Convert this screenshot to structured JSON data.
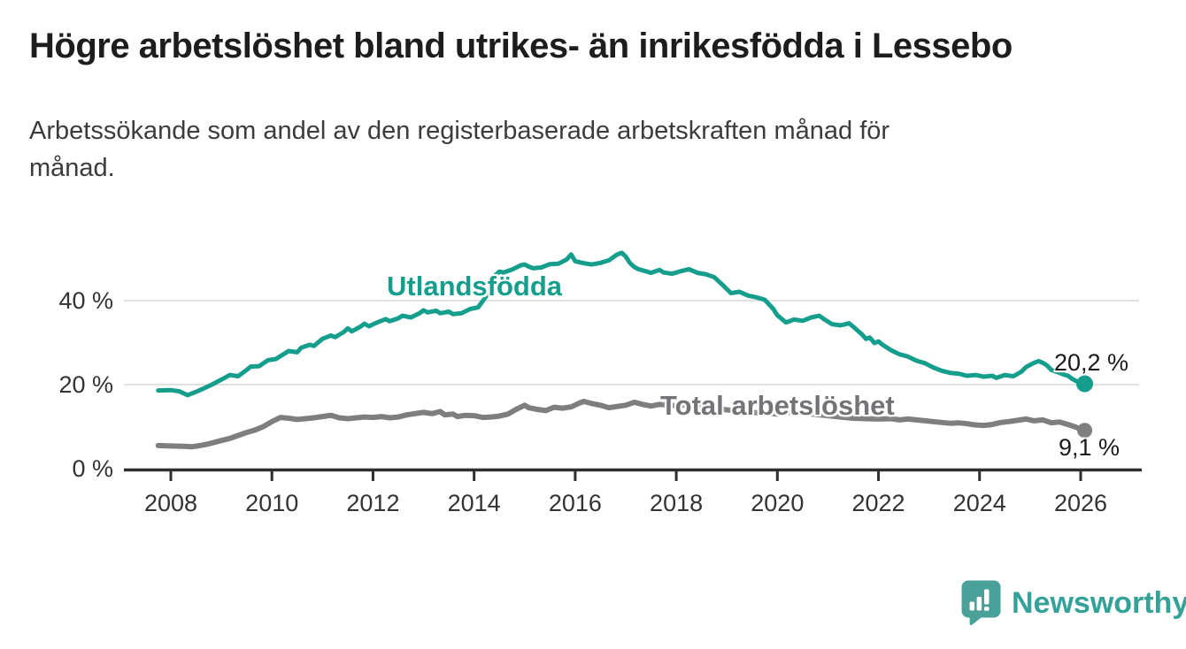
{
  "header": {
    "title": "Högre arbetslöshet bland utrikes- än inrikesfödda i Lessebo",
    "subtitle": "Arbetssökande som andel av den registerbaserade arbetskraften månad för\nmånad."
  },
  "branding": {
    "logo_text": "Newsworthy",
    "logo_text_color": "#35a29a",
    "logo_icon_color": "#4aa19a"
  },
  "chart_data": {
    "type": "line",
    "title": "Högre arbetslöshet bland utrikes- än inrikesfödda i Lessebo",
    "subtitle": "Arbetssökande som andel av den registerbaserade arbetskraften månad för månad.",
    "unit": "%",
    "grid": "horizontal",
    "colors": {
      "grid": "#d9d9d9",
      "axis": "#2f2f2f",
      "tick_text": "#333333"
    },
    "x_axis": {
      "min": 2007.75,
      "max": 2026.6,
      "ticks": [
        2008,
        2010,
        2012,
        2014,
        2016,
        2018,
        2020,
        2022,
        2024,
        2026
      ]
    },
    "y_axis": {
      "min": 0,
      "max": 54,
      "ticks": [
        {
          "value": 0,
          "label": "0 %"
        },
        {
          "value": 20,
          "label": "20 %"
        },
        {
          "value": 40,
          "label": "40 %"
        }
      ]
    },
    "series": [
      {
        "id": "utlandsfodda",
        "name": "Utlandsfödda",
        "color": "#169e8d",
        "stroke_width": 5,
        "end_label": "20,2 %",
        "end_value": 20.2,
        "points": [
          [
            2007.75,
            18.6
          ],
          [
            2008,
            18.7
          ],
          [
            2008.17,
            18.4
          ],
          [
            2008.33,
            17.5
          ],
          [
            2008.5,
            18.3
          ],
          [
            2008.67,
            19.2
          ],
          [
            2008.83,
            20.1
          ],
          [
            2009,
            21.2
          ],
          [
            2009.17,
            22.3
          ],
          [
            2009.33,
            22.0
          ],
          [
            2009.5,
            23.5
          ],
          [
            2009.58,
            24.3
          ],
          [
            2009.75,
            24.4
          ],
          [
            2009.92,
            25.8
          ],
          [
            2010.08,
            26.1
          ],
          [
            2010.25,
            27.4
          ],
          [
            2010.33,
            28.0
          ],
          [
            2010.5,
            27.7
          ],
          [
            2010.58,
            28.8
          ],
          [
            2010.75,
            29.5
          ],
          [
            2010.83,
            29.2
          ],
          [
            2011,
            30.9
          ],
          [
            2011.17,
            31.7
          ],
          [
            2011.25,
            31.3
          ],
          [
            2011.42,
            32.5
          ],
          [
            2011.5,
            33.4
          ],
          [
            2011.58,
            32.7
          ],
          [
            2011.75,
            33.8
          ],
          [
            2011.83,
            34.5
          ],
          [
            2011.92,
            33.9
          ],
          [
            2012.08,
            34.8
          ],
          [
            2012.25,
            35.6
          ],
          [
            2012.33,
            35.1
          ],
          [
            2012.5,
            35.8
          ],
          [
            2012.58,
            36.4
          ],
          [
            2012.75,
            36.0
          ],
          [
            2012.92,
            37.0
          ],
          [
            2013,
            37.7
          ],
          [
            2013.08,
            37.2
          ],
          [
            2013.25,
            37.6
          ],
          [
            2013.33,
            37.0
          ],
          [
            2013.5,
            37.4
          ],
          [
            2013.58,
            36.8
          ],
          [
            2013.75,
            37.0
          ],
          [
            2013.92,
            38.0
          ],
          [
            2014.08,
            38.4
          ],
          [
            2014.25,
            41.2
          ],
          [
            2014.42,
            46.0
          ],
          [
            2014.5,
            46.9
          ],
          [
            2014.58,
            46.7
          ],
          [
            2014.75,
            47.4
          ],
          [
            2014.92,
            48.4
          ],
          [
            2015,
            48.6
          ],
          [
            2015.08,
            48.1
          ],
          [
            2015.17,
            47.7
          ],
          [
            2015.33,
            47.9
          ],
          [
            2015.5,
            48.7
          ],
          [
            2015.67,
            48.8
          ],
          [
            2015.83,
            49.8
          ],
          [
            2015.92,
            51.0
          ],
          [
            2016,
            49.4
          ],
          [
            2016.17,
            48.9
          ],
          [
            2016.33,
            48.6
          ],
          [
            2016.5,
            49.0
          ],
          [
            2016.67,
            49.6
          ],
          [
            2016.83,
            51.0
          ],
          [
            2016.92,
            51.4
          ],
          [
            2017,
            50.5
          ],
          [
            2017.08,
            49.0
          ],
          [
            2017.17,
            48.0
          ],
          [
            2017.25,
            47.5
          ],
          [
            2017.42,
            46.9
          ],
          [
            2017.5,
            46.6
          ],
          [
            2017.67,
            47.3
          ],
          [
            2017.75,
            46.7
          ],
          [
            2017.92,
            46.4
          ],
          [
            2018.08,
            47.0
          ],
          [
            2018.25,
            47.5
          ],
          [
            2018.42,
            46.6
          ],
          [
            2018.58,
            46.3
          ],
          [
            2018.75,
            45.6
          ],
          [
            2018.92,
            43.7
          ],
          [
            2019.08,
            41.8
          ],
          [
            2019.25,
            42.1
          ],
          [
            2019.42,
            41.2
          ],
          [
            2019.58,
            40.8
          ],
          [
            2019.75,
            40.2
          ],
          [
            2019.92,
            38.0
          ],
          [
            2020,
            36.5
          ],
          [
            2020.17,
            34.8
          ],
          [
            2020.33,
            35.5
          ],
          [
            2020.5,
            35.2
          ],
          [
            2020.67,
            36.0
          ],
          [
            2020.83,
            36.4
          ],
          [
            2020.92,
            35.6
          ],
          [
            2021.08,
            34.4
          ],
          [
            2021.25,
            34.1
          ],
          [
            2021.42,
            34.6
          ],
          [
            2021.5,
            33.8
          ],
          [
            2021.67,
            32.0
          ],
          [
            2021.75,
            30.9
          ],
          [
            2021.83,
            31.2
          ],
          [
            2021.92,
            29.9
          ],
          [
            2022,
            30.3
          ],
          [
            2022.08,
            29.5
          ],
          [
            2022.25,
            28.2
          ],
          [
            2022.42,
            27.2
          ],
          [
            2022.58,
            26.7
          ],
          [
            2022.75,
            25.7
          ],
          [
            2022.92,
            25.1
          ],
          [
            2023.08,
            24.1
          ],
          [
            2023.25,
            23.3
          ],
          [
            2023.42,
            22.8
          ],
          [
            2023.58,
            22.6
          ],
          [
            2023.75,
            22.1
          ],
          [
            2023.92,
            22.3
          ],
          [
            2024.08,
            21.9
          ],
          [
            2024.25,
            22.1
          ],
          [
            2024.33,
            21.6
          ],
          [
            2024.5,
            22.3
          ],
          [
            2024.67,
            22.0
          ],
          [
            2024.83,
            23.1
          ],
          [
            2024.92,
            24.2
          ],
          [
            2025.08,
            25.2
          ],
          [
            2025.17,
            25.6
          ],
          [
            2025.25,
            25.2
          ],
          [
            2025.33,
            24.6
          ],
          [
            2025.42,
            23.5
          ],
          [
            2025.58,
            22.8
          ],
          [
            2025.67,
            22.4
          ],
          [
            2025.75,
            22.1
          ],
          [
            2025.83,
            21.4
          ],
          [
            2025.92,
            20.8
          ],
          [
            2026,
            20.4
          ],
          [
            2026.08,
            20.2
          ]
        ]
      },
      {
        "id": "total-arbetsloshet",
        "name": "Total arbetslöshet",
        "color": "#7d7e80",
        "stroke_width": 6,
        "end_label": "9,1 %",
        "end_value": 9.1,
        "points": [
          [
            2007.75,
            5.5
          ],
          [
            2008,
            5.4
          ],
          [
            2008.25,
            5.3
          ],
          [
            2008.42,
            5.2
          ],
          [
            2008.58,
            5.5
          ],
          [
            2008.75,
            5.9
          ],
          [
            2009,
            6.7
          ],
          [
            2009.17,
            7.2
          ],
          [
            2009.33,
            7.9
          ],
          [
            2009.5,
            8.6
          ],
          [
            2009.67,
            9.2
          ],
          [
            2009.83,
            10.0
          ],
          [
            2010,
            11.2
          ],
          [
            2010.17,
            12.2
          ],
          [
            2010.33,
            12.0
          ],
          [
            2010.5,
            11.7
          ],
          [
            2010.67,
            11.9
          ],
          [
            2010.83,
            12.1
          ],
          [
            2011,
            12.4
          ],
          [
            2011.17,
            12.7
          ],
          [
            2011.33,
            12.1
          ],
          [
            2011.5,
            11.9
          ],
          [
            2011.67,
            12.1
          ],
          [
            2011.83,
            12.3
          ],
          [
            2012,
            12.2
          ],
          [
            2012.17,
            12.4
          ],
          [
            2012.33,
            12.1
          ],
          [
            2012.5,
            12.3
          ],
          [
            2012.67,
            12.8
          ],
          [
            2012.83,
            13.1
          ],
          [
            2013,
            13.4
          ],
          [
            2013.17,
            13.1
          ],
          [
            2013.33,
            13.6
          ],
          [
            2013.42,
            12.8
          ],
          [
            2013.58,
            13.0
          ],
          [
            2013.67,
            12.4
          ],
          [
            2013.83,
            12.7
          ],
          [
            2014,
            12.6
          ],
          [
            2014.17,
            12.2
          ],
          [
            2014.33,
            12.3
          ],
          [
            2014.5,
            12.5
          ],
          [
            2014.67,
            13.0
          ],
          [
            2014.83,
            14.1
          ],
          [
            2015,
            15.1
          ],
          [
            2015.08,
            14.5
          ],
          [
            2015.25,
            14.1
          ],
          [
            2015.42,
            13.8
          ],
          [
            2015.58,
            14.6
          ],
          [
            2015.75,
            14.4
          ],
          [
            2015.92,
            14.7
          ],
          [
            2016.08,
            15.6
          ],
          [
            2016.17,
            16.0
          ],
          [
            2016.33,
            15.5
          ],
          [
            2016.5,
            15.1
          ],
          [
            2016.67,
            14.5
          ],
          [
            2016.83,
            14.8
          ],
          [
            2017,
            15.1
          ],
          [
            2017.17,
            15.8
          ],
          [
            2017.33,
            15.3
          ],
          [
            2017.5,
            14.9
          ],
          [
            2017.67,
            15.3
          ],
          [
            2017.83,
            15.1
          ],
          [
            2018,
            15.0
          ],
          [
            2018.25,
            15.2
          ],
          [
            2018.5,
            14.9
          ],
          [
            2018.75,
            14.4
          ],
          [
            2019,
            14.0
          ],
          [
            2019.25,
            13.7
          ],
          [
            2019.5,
            13.4
          ],
          [
            2019.75,
            13.2
          ],
          [
            2020,
            13.0
          ],
          [
            2020.25,
            13.4
          ],
          [
            2020.5,
            13.2
          ],
          [
            2020.75,
            12.9
          ],
          [
            2021,
            12.6
          ],
          [
            2021.25,
            12.3
          ],
          [
            2021.5,
            12.0
          ],
          [
            2021.75,
            11.9
          ],
          [
            2022,
            11.8
          ],
          [
            2022.25,
            11.9
          ],
          [
            2022.42,
            11.6
          ],
          [
            2022.58,
            11.8
          ],
          [
            2022.75,
            11.6
          ],
          [
            2022.92,
            11.4
          ],
          [
            2023.08,
            11.2
          ],
          [
            2023.25,
            11.0
          ],
          [
            2023.42,
            10.8
          ],
          [
            2023.58,
            10.9
          ],
          [
            2023.75,
            10.7
          ],
          [
            2023.92,
            10.4
          ],
          [
            2024.08,
            10.3
          ],
          [
            2024.25,
            10.5
          ],
          [
            2024.42,
            11.0
          ],
          [
            2024.58,
            11.2
          ],
          [
            2024.75,
            11.5
          ],
          [
            2024.92,
            11.8
          ],
          [
            2025.08,
            11.4
          ],
          [
            2025.25,
            11.6
          ],
          [
            2025.42,
            10.9
          ],
          [
            2025.58,
            11.1
          ],
          [
            2025.75,
            10.5
          ],
          [
            2025.92,
            9.8
          ],
          [
            2026,
            9.3
          ],
          [
            2026.08,
            9.1
          ]
        ]
      }
    ]
  }
}
